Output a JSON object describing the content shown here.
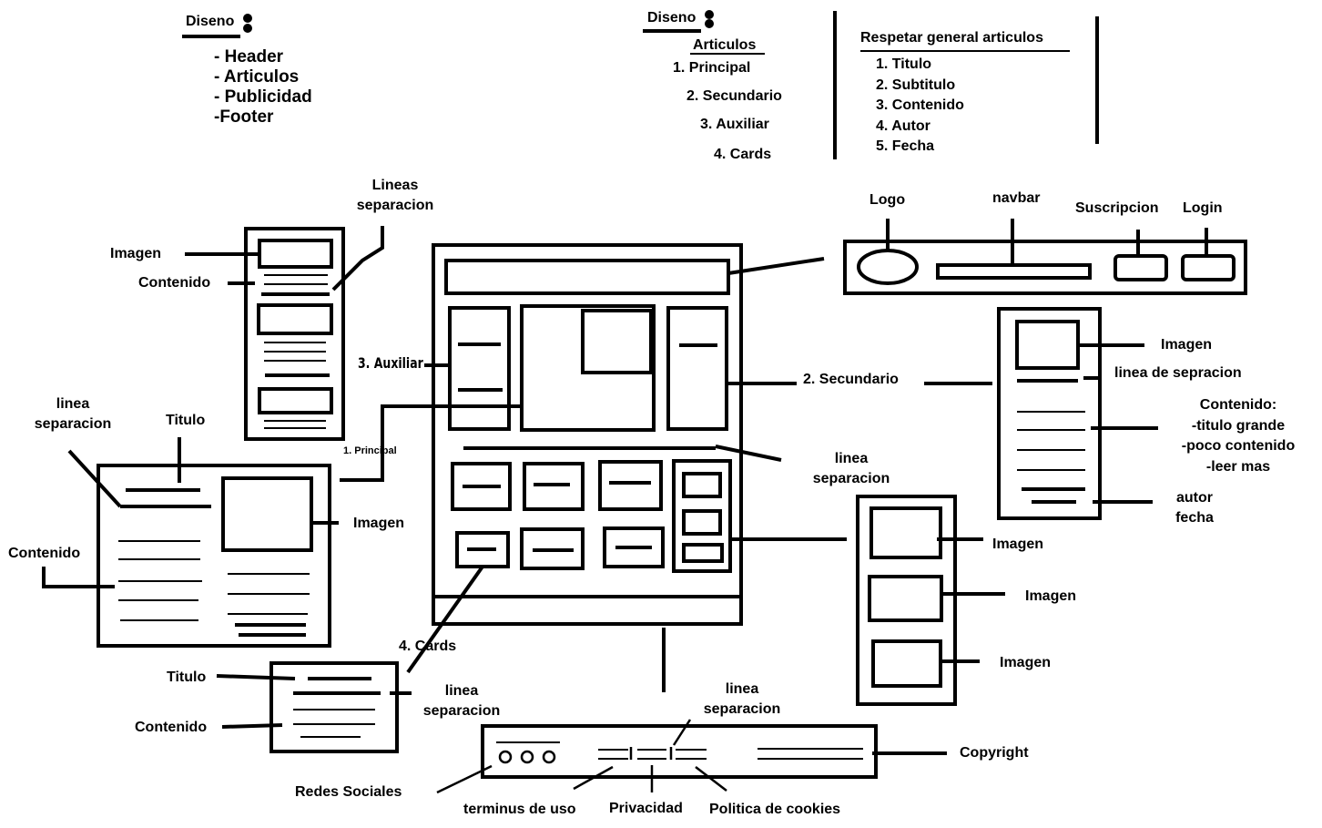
{
  "notes": {
    "left": {
      "heading": "Diseno",
      "items": [
        "- Header",
        "- Articulos",
        "- Publicidad",
        "-Footer"
      ]
    },
    "middle": {
      "heading": "Diseno",
      "subheading": "Articulos",
      "items": [
        "1. Principal",
        "2. Secundario",
        "3. Auxiliar",
        "4. Cards"
      ]
    },
    "right": {
      "heading": "Respetar general articulos",
      "items": [
        "1. Titulo",
        "2. Subtitulo",
        "3. Contenido",
        "4. Autor",
        "5. Fecha"
      ]
    }
  },
  "header_detail": {
    "logo": "Logo",
    "navbar": "navbar",
    "subscription": "Suscripcion",
    "login": "Login"
  },
  "auxiliar_detail": {
    "image": "Imagen",
    "content": "Contenido",
    "separator": [
      "Lineas",
      "separacion"
    ]
  },
  "main_layout": {
    "auxiliar": "3. Auxiliar",
    "principal": "1. Principal",
    "secundario": "2. Secundario",
    "separator": [
      "linea",
      "separacion"
    ],
    "cards": "4. Cards"
  },
  "principal_detail": {
    "separator": [
      "linea",
      "separacion"
    ],
    "title": "Titulo",
    "image": "Imagen",
    "content": "Contenido"
  },
  "secundario_detail": {
    "image": "Imagen",
    "separator": "linea de sepracion",
    "content": [
      "Contenido:",
      "-titulo grande",
      "-poco contenido",
      "-leer mas"
    ],
    "author_date": [
      "autor",
      "fecha"
    ]
  },
  "ads_detail": {
    "images": [
      "Imagen",
      "Imagen",
      "Imagen"
    ]
  },
  "card_detail": {
    "title": "Titulo",
    "content": "Contenido",
    "separator": [
      "linea",
      "separacion"
    ]
  },
  "footer_detail": {
    "separator": [
      "linea",
      "separacion"
    ],
    "copyright": "Copyright",
    "social": "Redes Sociales",
    "terms": "terminus de uso",
    "privacy": "Privacidad",
    "cookies": "Politica de cookies"
  }
}
